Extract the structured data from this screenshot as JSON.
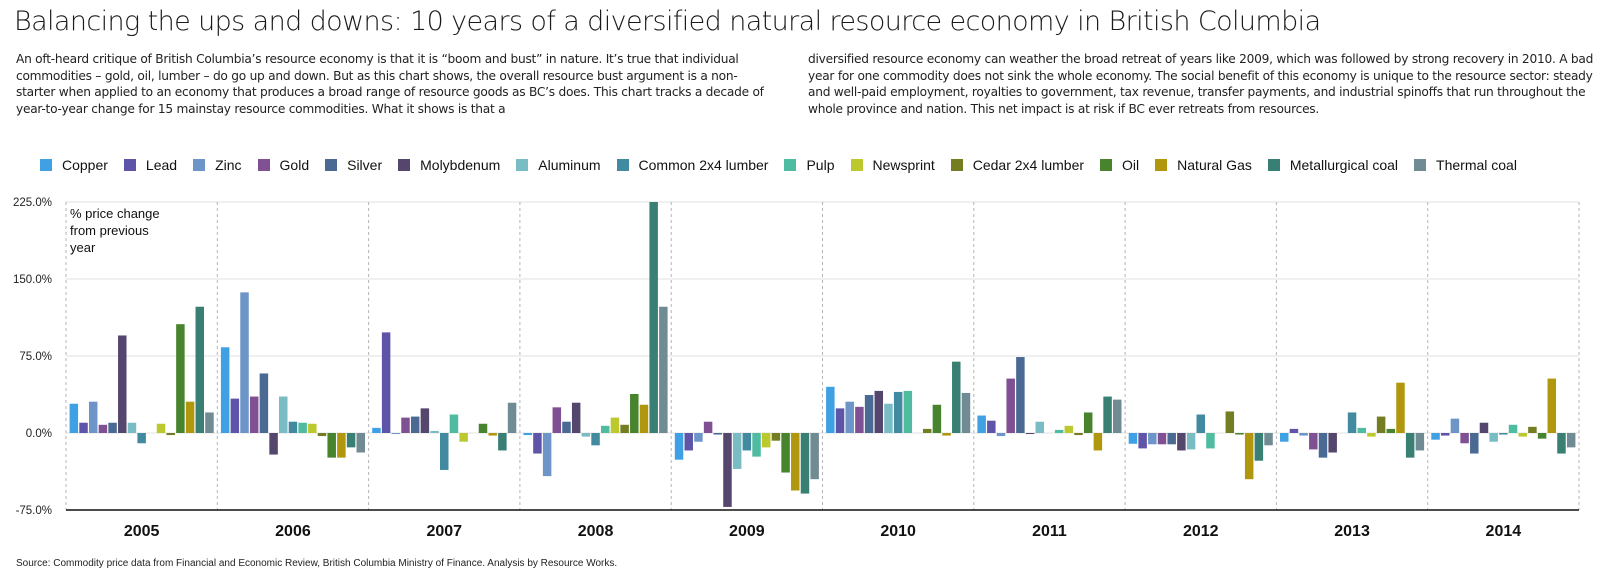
{
  "title": "Balancing the ups and downs: 10 years of a diversified natural resource economy in British Columbia",
  "intro_left": "An oft-heard critique of British Columbia’s resource economy is that it is “boom and bust” in nature. It’s true that individual commodities – gold, oil, lumber – do go up and down. But as this chart shows, the overall resource bust argument is a non-starter when applied to an economy that produces a broad range of resource goods as BC’s does. This chart tracks a decade of year-to-year change for 15 mainstay resource commodities. What it shows is that a",
  "intro_right": "diversified resource economy can weather the broad retreat of years like 2009, which was followed by strong recovery in 2010. A bad year for one commodity does not sink the whole economy. The social benefit of this economy is unique to the resource sector: steady and well-paid employment, royalties to government, tax revenue, transfer payments, and industrial spinoffs that run throughout the whole province and nation. This net impact is at risk if BC ever retreats from resources.",
  "source": "Source: Commodity price data from Financial and Economic Review, British Columbia Ministry of Finance. Analysis by Resource Works.",
  "chart_data": {
    "type": "bar",
    "title": "",
    "annotation": "% price change from previous year",
    "annotation_lines": [
      "% price change",
      "from previous",
      "year"
    ],
    "xlabel": "",
    "ylabel": "% price change from previous year",
    "ylim": [
      -75,
      225
    ],
    "yticks": [
      -75,
      0,
      75,
      150,
      225
    ],
    "ytick_labels": [
      "-75.0%",
      "0.0%",
      "75.0%",
      "150.0%",
      "225.0%"
    ],
    "grid": true,
    "legend_position": "top",
    "categories": [
      "2005",
      "2006",
      "2007",
      "2008",
      "2009",
      "2010",
      "2011",
      "2012",
      "2013",
      "2014"
    ],
    "series": [
      {
        "name": "Copper",
        "color": "#40a0e4",
        "values": [
          28.5,
          83.5,
          5,
          -2,
          -26,
          45,
          17,
          -10.5,
          -8.5,
          -6.5
        ]
      },
      {
        "name": "Lead",
        "color": "#5f55a8",
        "values": [
          10,
          33.5,
          98,
          -20,
          -17,
          24,
          12,
          -15,
          4,
          -2.5
        ]
      },
      {
        "name": "Zinc",
        "color": "#6d95c8",
        "values": [
          30.5,
          137,
          -1,
          -42,
          -8.5,
          30.5,
          -3,
          -11,
          -2.5,
          14
        ]
      },
      {
        "name": "Gold",
        "color": "#7f5192",
        "values": [
          8,
          35.5,
          15,
          25,
          11,
          25.5,
          53,
          -11,
          -16,
          -10
        ]
      },
      {
        "name": "Silver",
        "color": "#4a6a93",
        "values": [
          10,
          58,
          16,
          11,
          -1.5,
          37,
          74,
          -11,
          -24,
          -20
        ]
      },
      {
        "name": "Molybdenum",
        "color": "#55466e",
        "values": [
          95,
          -21,
          24,
          29.5,
          -72,
          41,
          -1,
          -17,
          -19,
          10
        ]
      },
      {
        "name": "Aluminum",
        "color": "#79bcc4",
        "values": [
          10,
          35.5,
          2,
          -3.5,
          -35,
          28.5,
          11,
          -16,
          0,
          -8.5
        ]
      },
      {
        "name": "Common 2x4 lumber",
        "color": "#428aa0",
        "values": [
          -10,
          11,
          -36,
          -12,
          -17,
          40,
          0,
          18,
          20,
          -1.5
        ]
      },
      {
        "name": "Pulp",
        "color": "#4fbba0",
        "values": [
          0,
          10,
          18,
          7,
          -23,
          41,
          3,
          -15,
          5,
          8
        ]
      },
      {
        "name": "Newsprint",
        "color": "#bcc92e",
        "values": [
          9,
          9,
          -8.5,
          15,
          -14,
          0,
          7,
          0,
          -3.5,
          -3.5
        ]
      },
      {
        "name": "Cedar 2x4 lumber",
        "color": "#747d21",
        "values": [
          -2,
          -3,
          0,
          8,
          -7.5,
          4,
          -2,
          21,
          16,
          6
        ]
      },
      {
        "name": "Oil",
        "color": "#48832e",
        "values": [
          106,
          -24,
          9,
          38,
          -38.5,
          27.5,
          20,
          -1.5,
          4,
          -5.5
        ]
      },
      {
        "name": "Natural Gas",
        "color": "#b1970d",
        "values": [
          30.5,
          -24,
          -2.5,
          27.5,
          -56,
          -2.5,
          -17,
          -45,
          49,
          53
        ]
      },
      {
        "name": "Metallurgical coal",
        "color": "#3a7f74",
        "values": [
          123,
          -14,
          -17,
          225,
          -59,
          69.5,
          35.5,
          -27,
          -24,
          -20
        ]
      },
      {
        "name": "Thermal coal",
        "color": "#718b94",
        "values": [
          20,
          -19,
          29.5,
          123,
          -45,
          39,
          32.5,
          -12,
          -17,
          -14
        ]
      }
    ]
  }
}
